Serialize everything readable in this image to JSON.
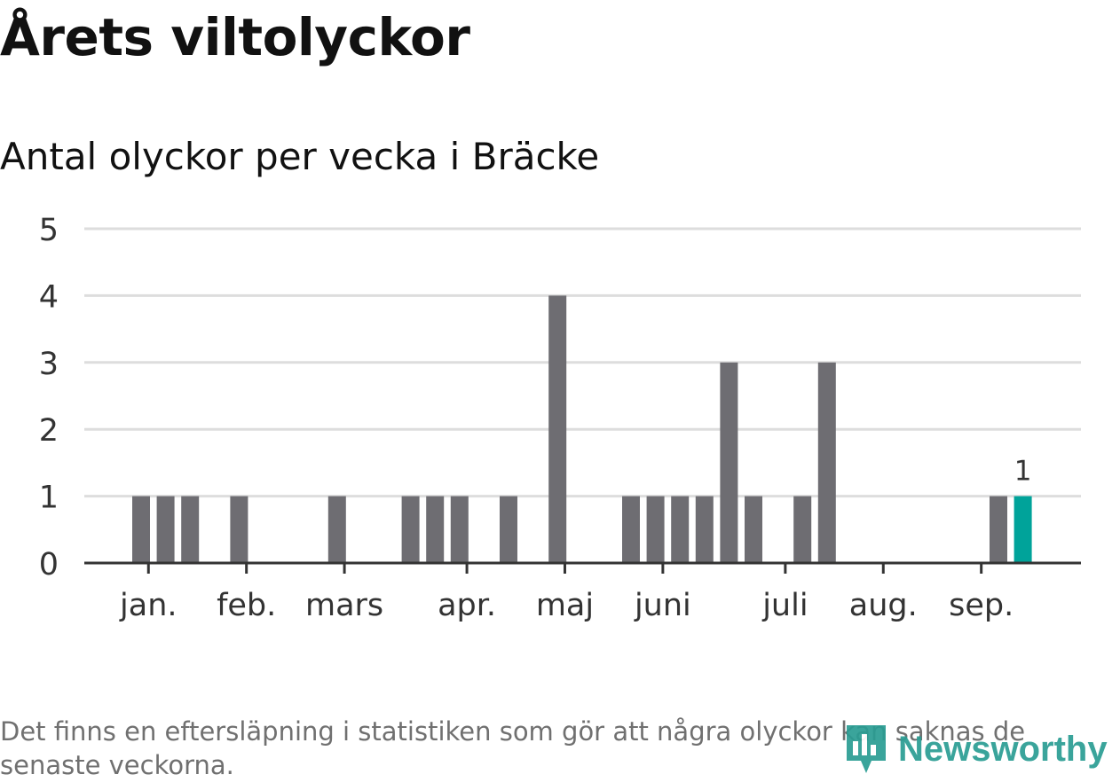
{
  "title": "Årets viltolyckor",
  "subtitle": "Antal olyckor per vecka i Bräcke",
  "footnote": "Det finns en eftersläpning i statistiken som gör att några olyckor kan saknas de senaste veckorna.",
  "logo_text": "Newsworthy",
  "colors": {
    "bar": "#6e6d72",
    "highlight": "#00a39a",
    "grid": "#dddddd",
    "axis": "#333333",
    "logo": "#2a9d93"
  },
  "chart_data": {
    "type": "bar",
    "x_weeks": [
      1,
      2,
      3,
      4,
      5,
      6,
      7,
      8,
      9,
      10,
      11,
      12,
      13,
      14,
      15,
      16,
      17,
      18,
      19,
      20,
      21,
      22,
      23,
      24,
      25,
      26,
      27,
      28,
      29,
      30,
      31,
      32,
      33,
      34,
      35,
      36,
      37
    ],
    "values": [
      1,
      1,
      1,
      0,
      1,
      0,
      0,
      0,
      1,
      0,
      0,
      1,
      1,
      1,
      0,
      1,
      0,
      4,
      0,
      0,
      1,
      1,
      1,
      1,
      3,
      1,
      0,
      1,
      3,
      0,
      0,
      0,
      0,
      0,
      0,
      1,
      1
    ],
    "highlight_index": 36,
    "highlight_label": "1",
    "ylim": [
      0,
      5
    ],
    "yticks": [
      "0",
      "1",
      "2",
      "3",
      "4",
      "5"
    ],
    "month_ticks": [
      {
        "label": "jan.",
        "week": 1.3
      },
      {
        "label": "feb.",
        "week": 5.3
      },
      {
        "label": "mars",
        "week": 9.3
      },
      {
        "label": "apr.",
        "week": 14.3
      },
      {
        "label": "maj",
        "week": 18.3
      },
      {
        "label": "juni",
        "week": 22.3
      },
      {
        "label": "juli",
        "week": 27.3
      },
      {
        "label": "aug.",
        "week": 31.3
      },
      {
        "label": "sep.",
        "week": 35.3
      }
    ],
    "grid": true,
    "xlabel": "",
    "ylabel": ""
  }
}
